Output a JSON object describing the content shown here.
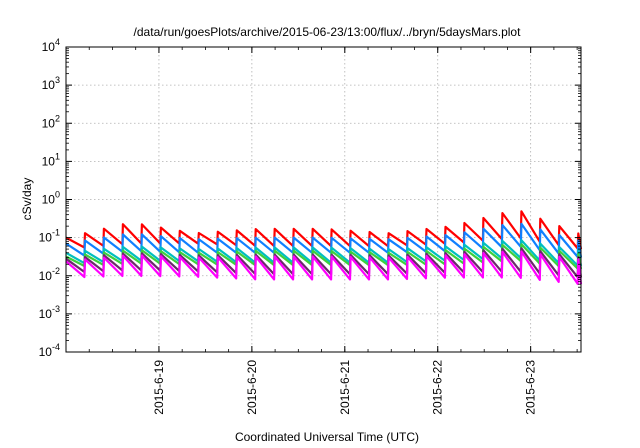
{
  "chart_data": {
    "type": "line",
    "title": "/data/run/goesPlots/archive/2015-06-23/13:00/flux/../bryn/5daysMars.plot",
    "xlabel": "Coordinated Universal Time (UTC)",
    "ylabel": "cSv/day",
    "yscale": "log",
    "ylim": [
      0.0001,
      10000
    ],
    "y_ticks": [
      {
        "base": "10",
        "exp": "-4"
      },
      {
        "base": "10",
        "exp": "-3"
      },
      {
        "base": "10",
        "exp": "-2"
      },
      {
        "base": "10",
        "exp": "-1"
      },
      {
        "base": "10",
        "exp": "0"
      },
      {
        "base": "10",
        "exp": "1"
      },
      {
        "base": "10",
        "exp": "2"
      },
      {
        "base": "10",
        "exp": "3"
      },
      {
        "base": "10",
        "exp": "4"
      }
    ],
    "xlim": [
      "2015-06-18 00:00",
      "2015-06-23 13:00"
    ],
    "x_ticks": [
      "2015-6-19",
      "2015-6-20",
      "2015-6-21",
      "2015-6-22",
      "2015-6-23"
    ],
    "grid": true,
    "sawtooth_period_hours": 4.9,
    "series": [
      {
        "color": "#ff0000",
        "peak": [
          0.1,
          0.25,
          0.13,
          0.17,
          0.17,
          0.13,
          0.2,
          0.55,
          0.12
        ],
        "trough": [
          0.05,
          0.07,
          0.07,
          0.06,
          0.06,
          0.06,
          0.07,
          0.1,
          0.05
        ]
      },
      {
        "color": "#1080ff",
        "peak": [
          0.07,
          0.13,
          0.09,
          0.1,
          0.1,
          0.09,
          0.12,
          0.25,
          0.08
        ],
        "trough": [
          0.03,
          0.045,
          0.04,
          0.04,
          0.04,
          0.04,
          0.045,
          0.06,
          0.03
        ]
      },
      {
        "color": "#00bfbf",
        "peak": [
          0.04,
          0.06,
          0.05,
          0.055,
          0.055,
          0.05,
          0.06,
          0.09,
          0.045
        ],
        "trough": [
          0.02,
          0.025,
          0.024,
          0.022,
          0.022,
          0.022,
          0.025,
          0.03,
          0.018
        ]
      },
      {
        "color": "#3ccf3c",
        "peak": [
          0.032,
          0.048,
          0.04,
          0.045,
          0.045,
          0.04,
          0.048,
          0.07,
          0.036
        ],
        "trough": [
          0.017,
          0.021,
          0.02,
          0.019,
          0.019,
          0.019,
          0.02,
          0.025,
          0.015
        ]
      },
      {
        "color": "#6a2a6a",
        "peak": [
          0.028,
          0.04,
          0.034,
          0.036,
          0.036,
          0.034,
          0.04,
          0.055,
          0.03
        ],
        "trough": [
          0.012,
          0.014,
          0.013,
          0.011,
          0.011,
          0.011,
          0.012,
          0.013,
          0.009
        ]
      },
      {
        "color": "#ff00ff",
        "peak": [
          0.024,
          0.035,
          0.03,
          0.032,
          0.032,
          0.03,
          0.035,
          0.045,
          0.026
        ],
        "trough": [
          0.009,
          0.01,
          0.0095,
          0.008,
          0.008,
          0.008,
          0.009,
          0.009,
          0.006
        ]
      }
    ]
  }
}
